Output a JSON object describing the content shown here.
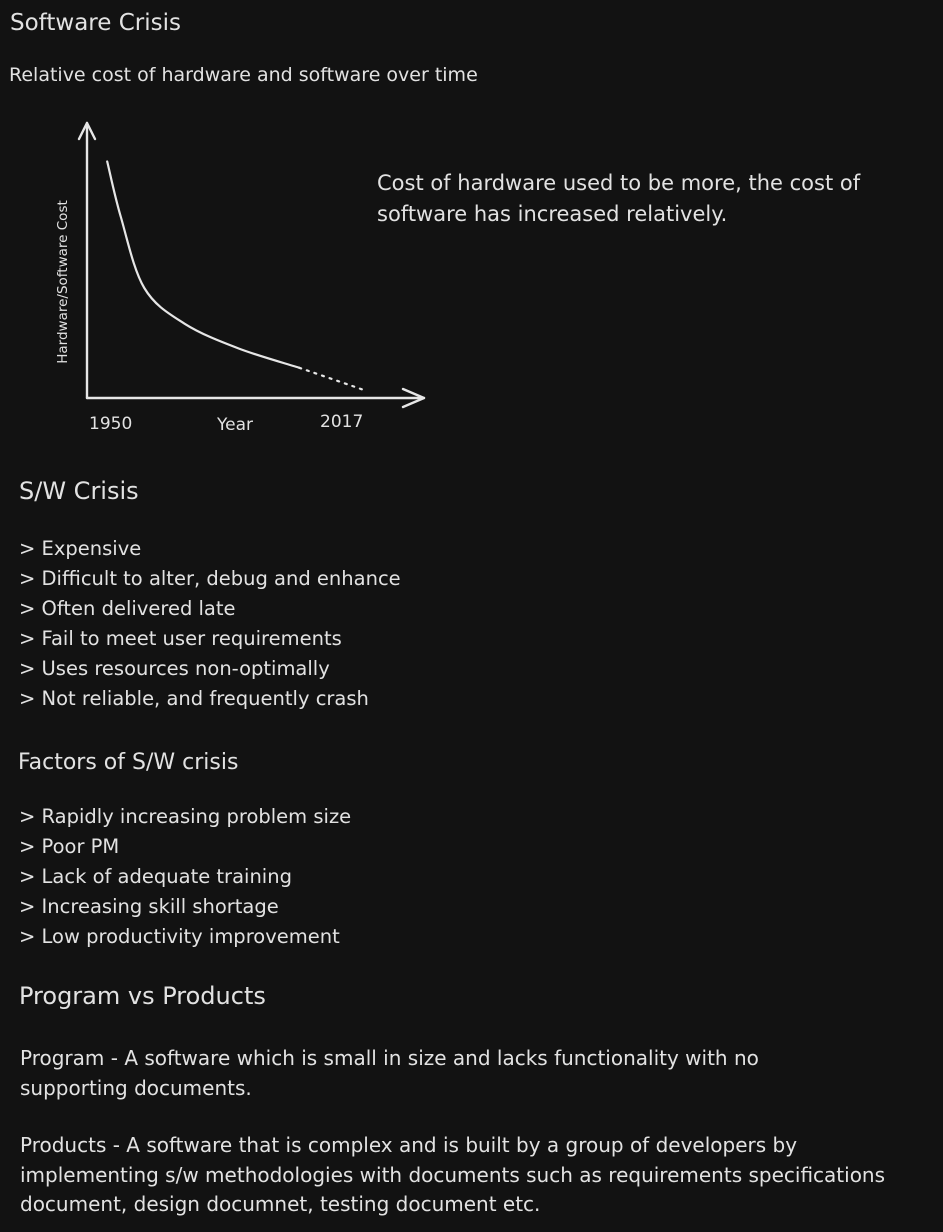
{
  "title": "Software Crisis",
  "subtitle": "Relative cost of hardware and software over time",
  "chart_data": {
    "type": "line",
    "ylabel": "Hardware/Software Cost",
    "xlabel": "Year",
    "x_ticks": [
      "1950",
      "2017"
    ],
    "series": [
      {
        "style": "solid",
        "points": [
          [
            0.06,
            0.86
          ],
          [
            0.1,
            0.66
          ],
          [
            0.17,
            0.4
          ],
          [
            0.29,
            0.27
          ],
          [
            0.45,
            0.18
          ],
          [
            0.63,
            0.11
          ]
        ]
      },
      {
        "style": "dotted",
        "points": [
          [
            0.63,
            0.11
          ],
          [
            0.82,
            0.03
          ]
        ]
      }
    ],
    "grid": false,
    "note": "Cost of hardware used to be more, the cost of software has increased relatively."
  },
  "sections": {
    "crisis": {
      "heading": "S/W Crisis",
      "items": [
        "> Expensive",
        "> Difficult to alter, debug and enhance",
        "> Often delivered late",
        "> Fail to meet user requirements",
        "> Uses resources non-optimally",
        "> Not reliable, and frequently crash"
      ]
    },
    "factors": {
      "heading": "Factors of S/W crisis",
      "items": [
        "> Rapidly increasing problem size",
        "> Poor PM",
        "> Lack of adequate training",
        "> Increasing skill shortage",
        "> Low productivity improvement"
      ]
    },
    "program_vs_products": {
      "heading": "Program vs Products",
      "program": "Program - A software which is small in size and lacks functionality with no supporting documents.",
      "products": "Products - A software that is complex and is built by a group of developers by implementing s/w methodologies with documents such as requirements specifications document, design documnet, testing document etc."
    }
  }
}
